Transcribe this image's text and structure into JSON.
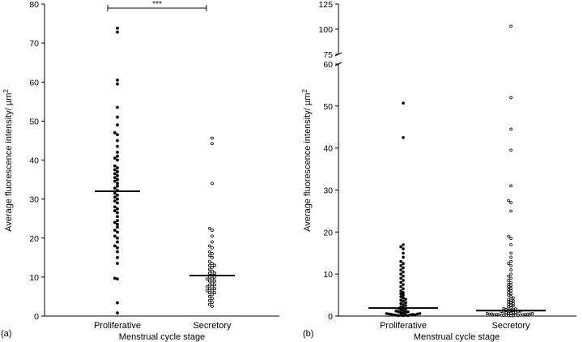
{
  "chart_data": [
    {
      "type": "scatter",
      "panel_label": "(a)",
      "xlabel": "Menstrual cycle stage",
      "ylabel": "Average fluorescence intensity/ µm",
      "ylabel_sup": "2",
      "ylim": [
        0,
        80
      ],
      "yticks": [
        0,
        10,
        20,
        30,
        40,
        50,
        60,
        70,
        80
      ],
      "grid": false,
      "categories": [
        "Proliferative",
        "Secretory"
      ],
      "median_lines": [
        32.0,
        10.4
      ],
      "significance": "***",
      "series": [
        {
          "values": [
            0.8,
            3.4,
            9.5,
            9.7,
            13.5,
            15.0,
            16.5,
            17.5,
            18.0,
            19.0,
            20.0,
            20.5,
            21.5,
            22.0,
            22.8,
            23.5,
            24.0,
            24.5,
            25.5,
            26.5,
            27.0,
            27.5,
            28.0,
            29.0,
            29.5,
            30.0,
            30.5,
            31.0,
            31.5,
            32.2,
            32.8,
            33.3,
            34.0,
            34.6,
            35.0,
            35.5,
            36.0,
            36.5,
            37.0,
            37.5,
            38.0,
            38.5,
            40.0,
            40.5,
            41.0,
            42.0,
            43.5,
            45.0,
            46.5,
            47.0,
            49.0,
            51.0,
            53.5,
            59.5,
            60.5,
            72.8,
            73.8
          ]
        },
        {
          "values": [
            2.5,
            3.0,
            3.5,
            4.0,
            4.5,
            5.0,
            5.5,
            6.0,
            6.0,
            6.5,
            6.5,
            7.0,
            7.0,
            7.5,
            7.5,
            8.0,
            8.0,
            8.5,
            9.0,
            9.0,
            9.5,
            9.5,
            10.0,
            10.0,
            10.5,
            11.0,
            11.0,
            11.5,
            12.0,
            12.5,
            13.0,
            13.0,
            13.5,
            14.0,
            15.0,
            15.5,
            16.0,
            16.5,
            17.5,
            18.0,
            19.0,
            20.5,
            22.0,
            22.5,
            34.0,
            44.2,
            45.6
          ]
        }
      ]
    },
    {
      "type": "scatter",
      "panel_label": "(b)",
      "xlabel": "Menstrual cycle stage",
      "ylabel": "Average fluorescence intensity/ µm",
      "ylabel_sup": "2",
      "ylim": [
        0,
        125
      ],
      "axis_break": [
        60,
        75
      ],
      "yticks": [
        0,
        10,
        20,
        30,
        40,
        50,
        60,
        75,
        100,
        125
      ],
      "grid": false,
      "categories": [
        "Proliferative",
        "Secretory"
      ],
      "median_lines": [
        1.9,
        1.3
      ],
      "series": [
        {
          "values": [
            0.1,
            0.1,
            0.1,
            0.2,
            0.2,
            0.2,
            0.3,
            0.3,
            0.3,
            0.4,
            0.4,
            0.5,
            0.5,
            0.6,
            0.6,
            0.7,
            0.8,
            0.9,
            1.0,
            1.0,
            1.2,
            1.3,
            1.5,
            1.6,
            1.8,
            2.0,
            2.2,
            2.5,
            2.7,
            3.0,
            3.2,
            3.5,
            3.8,
            4.0,
            4.3,
            4.6,
            5.0,
            5.3,
            5.6,
            6.0,
            6.5,
            7.0,
            7.5,
            8.0,
            8.5,
            9.0,
            9.5,
            10.0,
            10.5,
            11.0,
            11.5,
            12.0,
            12.5,
            13.0,
            14.0,
            15.0,
            16.0,
            16.5,
            17.0,
            42.5,
            50.7
          ]
        },
        {
          "values": [
            0.1,
            0.1,
            0.1,
            0.1,
            0.1,
            0.2,
            0.2,
            0.2,
            0.2,
            0.3,
            0.3,
            0.3,
            0.4,
            0.4,
            0.4,
            0.5,
            0.5,
            0.5,
            0.6,
            0.6,
            0.7,
            0.7,
            0.8,
            0.8,
            0.9,
            1.0,
            1.0,
            1.1,
            1.2,
            1.3,
            1.4,
            1.5,
            1.6,
            1.7,
            1.8,
            2.0,
            2.2,
            2.4,
            2.6,
            2.8,
            3.0,
            3.2,
            3.4,
            3.6,
            3.8,
            4.0,
            4.3,
            4.6,
            5.0,
            5.3,
            5.6,
            6.0,
            6.3,
            6.6,
            7.0,
            7.3,
            7.6,
            8.0,
            8.5,
            9.0,
            9.5,
            10.0,
            11.0,
            12.0,
            12.5,
            13.0,
            14.0,
            15.0,
            17.0,
            18.5,
            19.0,
            25.0,
            27.0,
            27.5,
            31.0,
            39.5,
            44.5,
            52.0,
            103.0
          ]
        }
      ]
    }
  ]
}
